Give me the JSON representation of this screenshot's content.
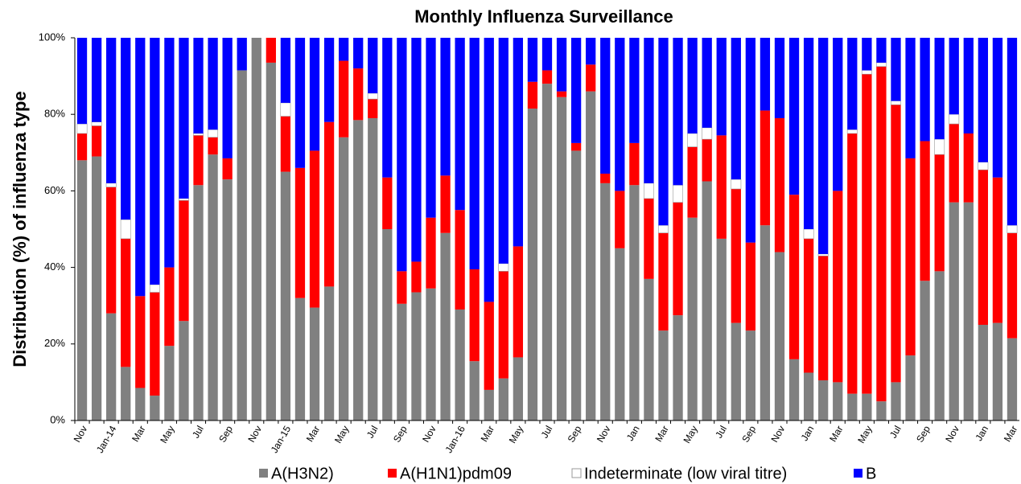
{
  "chart_data": {
    "type": "stacked_bar",
    "title": "Monthly Influenza Surveillance",
    "y_label": "Distribution (%) of influenza  type",
    "categories": [
      "Nov",
      null,
      "Jan-14",
      null,
      "Mar",
      null,
      "May",
      null,
      "Jul",
      null,
      "Sep",
      null,
      "Nov",
      null,
      "Jan-15",
      null,
      "Mar",
      null,
      "May",
      null,
      "Jul",
      null,
      "Sep",
      null,
      "Nov",
      null,
      "Jan-16",
      null,
      "Mar",
      null,
      "May",
      null,
      "Jul",
      null,
      "Sep",
      null,
      "Nov",
      null,
      "Jan",
      null,
      "Mar",
      null,
      "May",
      null,
      "Jul",
      null,
      "Sep",
      null,
      "Nov",
      null,
      "Jan",
      null,
      "Mar",
      null,
      "May",
      null,
      "Jul",
      null,
      "Sep",
      null,
      "Nov",
      null,
      "Jan",
      null,
      "Mar"
    ],
    "series": [
      {
        "name": "A(H3N2)",
        "color": "#808080",
        "values": [
          68,
          69,
          28,
          14,
          8.5,
          6.5,
          19.5,
          26,
          61.5,
          69.5,
          63,
          91.5,
          100,
          93.5,
          65,
          32,
          29.5,
          35,
          74,
          78.5,
          79,
          50,
          30.5,
          33.5,
          34.5,
          49,
          29,
          15.5,
          8,
          11,
          16.5,
          81.5,
          88,
          84.5,
          70.5,
          86,
          62,
          45,
          61.5,
          37,
          23.5,
          27.5,
          53,
          62.5,
          47.5,
          25.5,
          23.5,
          51,
          44,
          16,
          12.5,
          10.5,
          10,
          7,
          7,
          5,
          10,
          17,
          36.5,
          39,
          57,
          57,
          25,
          25.5,
          21.5
        ]
      },
      {
        "name": "A(H1N1)pdm09",
        "color": "#ff0000",
        "values": [
          7,
          8,
          33,
          33.5,
          24,
          27,
          20.5,
          31.5,
          13,
          4.5,
          5.5,
          0,
          0,
          6.5,
          14.5,
          34,
          41,
          43,
          20,
          13.5,
          5,
          13.5,
          8.5,
          8,
          18.5,
          15,
          26,
          24,
          23,
          28,
          29,
          7,
          3.5,
          1.5,
          2,
          7,
          2.5,
          15,
          11,
          21,
          25.5,
          29.5,
          18.5,
          11,
          27,
          35,
          23,
          30,
          35,
          43,
          35,
          32.5,
          50,
          68,
          83.5,
          87.5,
          72.5,
          51.5,
          36.5,
          30.5,
          20.5,
          18,
          40.5,
          38,
          27.5
        ]
      },
      {
        "name": "Indeterminate (low viral titre)",
        "color": "#ffffff",
        "values": [
          2.5,
          1,
          1,
          5,
          0,
          2,
          0,
          0.5,
          0.5,
          2,
          0,
          0,
          0,
          0,
          3.5,
          0,
          0,
          0,
          0,
          0,
          1.5,
          0,
          0,
          0,
          0,
          0,
          0,
          0,
          0,
          2,
          0,
          0,
          0,
          0,
          0,
          0,
          0,
          0,
          0,
          4,
          2,
          4.5,
          3.5,
          3,
          0,
          2.5,
          0,
          0,
          0,
          0,
          2.5,
          0.5,
          0,
          1,
          1,
          1,
          1,
          0,
          0,
          4,
          2.5,
          0,
          2,
          0,
          2
        ]
      },
      {
        "name": "B",
        "color": "#0000ff",
        "values": [
          22.5,
          22,
          38,
          47.5,
          67.5,
          64.5,
          60,
          42,
          25,
          24,
          31.5,
          8.5,
          0,
          0,
          17,
          34,
          29.5,
          22,
          6,
          8,
          14.5,
          36.5,
          61,
          58.5,
          47,
          36,
          45,
          60.5,
          69,
          59,
          54.5,
          11.5,
          8.5,
          14,
          27.5,
          7,
          35.5,
          40,
          27.5,
          38,
          49,
          38.5,
          25,
          23.5,
          25.5,
          37,
          53.5,
          19,
          21,
          41,
          50,
          56.5,
          40,
          24,
          8.5,
          6.5,
          16.5,
          31.5,
          27,
          26.5,
          20,
          25,
          32.5,
          36.5,
          49
        ]
      }
    ],
    "ylim": [
      0,
      100
    ],
    "yticks": [
      {
        "value": 0,
        "label": "0%"
      },
      {
        "value": 20,
        "label": "20%"
      },
      {
        "value": 40,
        "label": "40%"
      },
      {
        "value": 60,
        "label": "60%"
      },
      {
        "value": 80,
        "label": "80%"
      },
      {
        "value": 100,
        "label": "100%"
      }
    ],
    "legend": "bottom"
  }
}
